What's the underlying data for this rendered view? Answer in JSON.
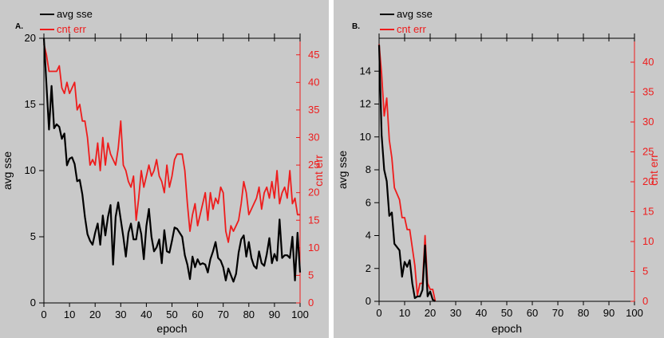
{
  "chart_data": [
    {
      "type": "line",
      "panel_label": "A.",
      "xlabel": "epoch",
      "ylabel": "avg sse",
      "y2label": "cnt err",
      "xlim": [
        0,
        100
      ],
      "ylim": [
        0,
        20
      ],
      "y2lim": [
        0,
        48
      ],
      "x_ticks": [
        0,
        10,
        20,
        30,
        40,
        50,
        60,
        70,
        80,
        90,
        100
      ],
      "y_ticks": [
        0,
        5,
        10,
        15,
        20
      ],
      "y2_ticks": [
        0,
        5,
        10,
        15,
        20,
        25,
        30,
        35,
        40,
        45
      ],
      "legend_position": "top-left",
      "series": [
        {
          "name": "avg sse",
          "color": "#000000",
          "axis": "left",
          "x": [
            0,
            1,
            2,
            3,
            4,
            5,
            6,
            7,
            8,
            9,
            10,
            11,
            12,
            13,
            14,
            15,
            16,
            17,
            18,
            19,
            20,
            21,
            22,
            23,
            24,
            25,
            26,
            27,
            28,
            29,
            30,
            31,
            32,
            33,
            34,
            35,
            36,
            37,
            38,
            39,
            40,
            41,
            42,
            43,
            44,
            45,
            46,
            47,
            48,
            49,
            50,
            51,
            52,
            53,
            54,
            55,
            56,
            57,
            58,
            59,
            60,
            61,
            62,
            63,
            64,
            65,
            66,
            67,
            68,
            69,
            70,
            71,
            72,
            73,
            74,
            75,
            76,
            77,
            78,
            79,
            80,
            81,
            82,
            83,
            84,
            85,
            86,
            87,
            88,
            89,
            90,
            91,
            92,
            93,
            94,
            95,
            96,
            97,
            98,
            99,
            100
          ],
          "values": [
            20,
            16.5,
            13.1,
            16.4,
            13.2,
            13.5,
            13.3,
            12.4,
            12.8,
            10.4,
            10.9,
            11,
            10.5,
            9.2,
            9.3,
            8.2,
            6.5,
            5.2,
            4.7,
            4.4,
            5.3,
            6,
            4.4,
            6.6,
            5.1,
            6.5,
            7.4,
            2.9,
            6.5,
            7.6,
            6.3,
            5,
            3.5,
            5.3,
            6,
            4.8,
            4.8,
            6.1,
            5.2,
            3.3,
            5.8,
            7.1,
            5,
            3.9,
            4.2,
            4.8,
            3,
            5.5,
            3.9,
            3.8,
            4.7,
            5.7,
            5.6,
            5.3,
            5,
            3.6,
            2.9,
            1.8,
            3.5,
            2.7,
            3.3,
            2.9,
            3,
            2.9,
            2.3,
            3.3,
            3.9,
            4.6,
            3.4,
            3.2,
            2.7,
            1.7,
            2.6,
            2.1,
            1.6,
            2.2,
            3.8,
            4.8,
            5.1,
            3.5,
            4.6,
            3.4,
            2.8,
            2.6,
            3.9,
            3,
            2.8,
            3.7,
            4.9,
            3,
            3.7,
            3.2,
            6.3,
            3.4,
            3.6,
            3.6,
            3.4,
            5,
            1.7,
            5.3,
            2.3
          ]
        },
        {
          "name": "cnt err",
          "color": "#ee1c1c",
          "axis": "right",
          "x": [
            0,
            1,
            2,
            3,
            4,
            5,
            6,
            7,
            8,
            9,
            10,
            11,
            12,
            13,
            14,
            15,
            16,
            17,
            18,
            19,
            20,
            21,
            22,
            23,
            24,
            25,
            26,
            27,
            28,
            29,
            30,
            31,
            32,
            33,
            34,
            35,
            36,
            37,
            38,
            39,
            40,
            41,
            42,
            43,
            44,
            45,
            46,
            47,
            48,
            49,
            50,
            51,
            52,
            53,
            54,
            55,
            56,
            57,
            58,
            59,
            60,
            61,
            62,
            63,
            64,
            65,
            66,
            67,
            68,
            69,
            70,
            71,
            72,
            73,
            74,
            75,
            76,
            77,
            78,
            79,
            80,
            81,
            82,
            83,
            84,
            85,
            86,
            87,
            88,
            89,
            90,
            91,
            92,
            93,
            94,
            95,
            96,
            97,
            98,
            99,
            100
          ],
          "values": [
            47,
            45,
            42,
            42,
            42,
            42,
            43,
            39,
            38,
            40,
            38,
            39,
            40,
            35,
            36,
            33,
            33,
            30,
            25,
            26,
            25,
            29,
            24,
            30,
            25,
            29,
            27,
            26,
            25,
            28,
            33,
            25,
            24,
            22,
            21,
            23,
            15,
            19,
            24,
            21,
            23,
            25,
            23,
            24,
            26,
            23,
            22,
            20,
            25,
            21,
            23,
            26,
            27,
            27,
            27,
            24,
            18,
            13,
            16,
            18,
            14,
            16,
            18,
            20,
            15,
            20,
            17,
            19,
            18,
            21,
            20,
            13,
            11,
            14,
            13,
            14,
            15,
            18,
            22,
            20,
            16,
            17,
            18,
            19,
            21,
            17,
            20,
            21,
            19,
            22,
            19,
            24,
            18,
            20,
            21,
            19,
            24,
            18,
            19,
            16,
            16
          ]
        }
      ]
    },
    {
      "type": "line",
      "panel_label": "B.",
      "xlabel": "epoch",
      "ylabel": "avg sse",
      "y2label": "cnt err",
      "xlim": [
        0,
        100
      ],
      "ylim": [
        0,
        16
      ],
      "y2lim": [
        0,
        44
      ],
      "x_ticks": [
        0,
        10,
        20,
        30,
        40,
        50,
        60,
        70,
        80,
        90,
        100
      ],
      "y_ticks": [
        0,
        2,
        4,
        6,
        8,
        10,
        12,
        14
      ],
      "y2_ticks": [
        0,
        5,
        10,
        15,
        20,
        25,
        30,
        35,
        40
      ],
      "legend_position": "top-left",
      "series": [
        {
          "name": "avg sse",
          "color": "#000000",
          "axis": "left",
          "x": [
            0,
            1,
            2,
            3,
            4,
            5,
            6,
            7,
            8,
            9,
            10,
            11,
            12,
            13,
            14,
            15,
            16,
            17,
            18,
            19,
            20,
            21,
            22
          ],
          "values": [
            15.6,
            10.1,
            8,
            7.3,
            5.2,
            5.4,
            3.5,
            3.3,
            3.1,
            1.5,
            2.4,
            2.1,
            2.5,
            1.1,
            0.2,
            0.3,
            0.3,
            0.7,
            3.4,
            0.3,
            0.6,
            0.1,
            0
          ]
        },
        {
          "name": "cnt err",
          "color": "#ee1c1c",
          "axis": "right",
          "x": [
            0,
            1,
            2,
            3,
            4,
            5,
            6,
            7,
            8,
            9,
            10,
            11,
            12,
            13,
            14,
            15,
            16,
            17,
            18,
            19,
            20,
            21,
            22
          ],
          "values": [
            43,
            38,
            31,
            34,
            27,
            24,
            19,
            18,
            17,
            14,
            14,
            12,
            12,
            9,
            6,
            1,
            3,
            3,
            11,
            3,
            2,
            2,
            0
          ]
        }
      ]
    }
  ]
}
